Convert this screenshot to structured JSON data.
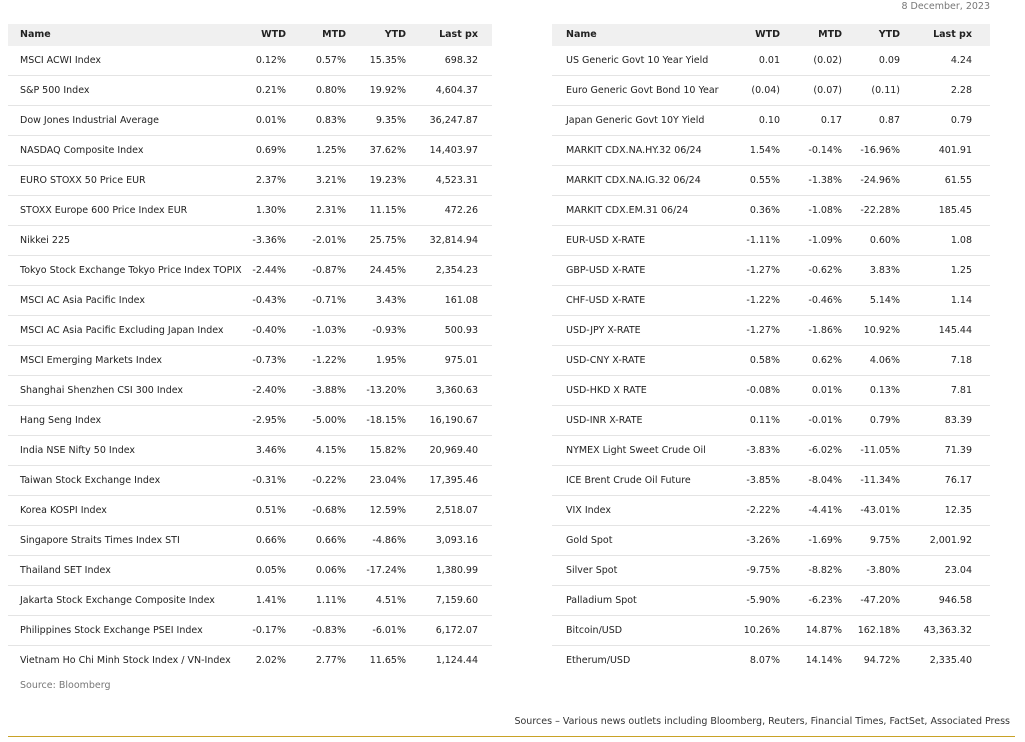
{
  "date": "8 December, 2023",
  "tables": [
    {
      "headers": [
        "Name",
        "WTD",
        "MTD",
        "YTD",
        "Last px"
      ],
      "rows": [
        [
          "MSCI ACWI Index",
          "0.12%",
          "0.57%",
          "15.35%",
          "698.32"
        ],
        [
          "S&P 500 Index",
          "0.21%",
          "0.80%",
          "19.92%",
          "4,604.37"
        ],
        [
          "Dow Jones Industrial Average",
          "0.01%",
          "0.83%",
          "9.35%",
          "36,247.87"
        ],
        [
          "NASDAQ Composite Index",
          "0.69%",
          "1.25%",
          "37.62%",
          "14,403.97"
        ],
        [
          "EURO STOXX 50 Price EUR",
          "2.37%",
          "3.21%",
          "19.23%",
          "4,523.31"
        ],
        [
          "STOXX Europe 600 Price Index EUR",
          "1.30%",
          "2.31%",
          "11.15%",
          "472.26"
        ],
        [
          "Nikkei 225",
          "-3.36%",
          "-2.01%",
          "25.75%",
          "32,814.94"
        ],
        [
          "Tokyo Stock Exchange Tokyo Price Index TOPIX",
          "-2.44%",
          "-0.87%",
          "24.45%",
          "2,354.23"
        ],
        [
          "MSCI AC Asia Pacific Index",
          "-0.43%",
          "-0.71%",
          "3.43%",
          "161.08"
        ],
        [
          "MSCI AC Asia Pacific Excluding Japan Index",
          "-0.40%",
          "-1.03%",
          "-0.93%",
          "500.93"
        ],
        [
          "MSCI Emerging Markets Index",
          "-0.73%",
          "-1.22%",
          "1.95%",
          "975.01"
        ],
        [
          "Shanghai Shenzhen CSI 300 Index",
          "-2.40%",
          "-3.88%",
          "-13.20%",
          "3,360.63"
        ],
        [
          "Hang Seng Index",
          "-2.95%",
          "-5.00%",
          "-18.15%",
          "16,190.67"
        ],
        [
          "India NSE Nifty 50 Index",
          "3.46%",
          "4.15%",
          "15.82%",
          "20,969.40"
        ],
        [
          "Taiwan Stock Exchange Index",
          "-0.31%",
          "-0.22%",
          "23.04%",
          "17,395.46"
        ],
        [
          "Korea KOSPI Index",
          "0.51%",
          "-0.68%",
          "12.59%",
          "2,518.07"
        ],
        [
          "Singapore Straits Times Index STI",
          "0.66%",
          "0.66%",
          "-4.86%",
          "3,093.16"
        ],
        [
          "Thailand SET Index",
          "0.05%",
          "0.06%",
          "-17.24%",
          "1,380.99"
        ],
        [
          "Jakarta Stock Exchange Composite Index",
          "1.41%",
          "1.11%",
          "4.51%",
          "7,159.60"
        ],
        [
          "Philippines Stock Exchange PSEI Index",
          "-0.17%",
          "-0.83%",
          "-6.01%",
          "6,172.07"
        ],
        [
          "Vietnam Ho Chi Minh Stock Index / VN-Index",
          "2.02%",
          "2.77%",
          "11.65%",
          "1,124.44"
        ]
      ],
      "source": "Source: Bloomberg"
    },
    {
      "headers": [
        "Name",
        "WTD",
        "MTD",
        "YTD",
        "Last px"
      ],
      "rows": [
        [
          "US Generic Govt 10 Year Yield",
          "0.01",
          "(0.02)",
          "0.09",
          "4.24"
        ],
        [
          "Euro Generic Govt Bond 10 Year",
          "(0.04)",
          "(0.07)",
          "(0.11)",
          "2.28"
        ],
        [
          "Japan Generic Govt 10Y Yield",
          "0.10",
          "0.17",
          "0.87",
          "0.79"
        ],
        [
          "MARKIT CDX.NA.HY.32 06/24",
          "1.54%",
          "-0.14%",
          "-16.96%",
          "401.91"
        ],
        [
          "MARKIT CDX.NA.IG.32 06/24",
          "0.55%",
          "-1.38%",
          "-24.96%",
          "61.55"
        ],
        [
          "MARKIT CDX.EM.31 06/24",
          "0.36%",
          "-1.08%",
          "-22.28%",
          "185.45"
        ],
        [
          "EUR-USD X-RATE",
          "-1.11%",
          "-1.09%",
          "0.60%",
          "1.08"
        ],
        [
          "GBP-USD X-RATE",
          "-1.27%",
          "-0.62%",
          "3.83%",
          "1.25"
        ],
        [
          "CHF-USD X-RATE",
          "-1.22%",
          "-0.46%",
          "5.14%",
          "1.14"
        ],
        [
          "USD-JPY X-RATE",
          "-1.27%",
          "-1.86%",
          "10.92%",
          "145.44"
        ],
        [
          "USD-CNY X-RATE",
          "0.58%",
          "0.62%",
          "4.06%",
          "7.18"
        ],
        [
          "USD-HKD X RATE",
          "-0.08%",
          "0.01%",
          "0.13%",
          "7.81"
        ],
        [
          "USD-INR X-RATE",
          "0.11%",
          "-0.01%",
          "0.79%",
          "83.39"
        ],
        [
          "NYMEX Light Sweet Crude Oil",
          "-3.83%",
          "-6.02%",
          "-11.05%",
          "71.39"
        ],
        [
          "ICE Brent Crude Oil Future",
          "-3.85%",
          "-8.04%",
          "-11.34%",
          "76.17"
        ],
        [
          "VIX Index",
          "-2.22%",
          "-4.41%",
          "-43.01%",
          "12.35"
        ],
        [
          "Gold Spot",
          "-3.26%",
          "-1.69%",
          "9.75%",
          "2,001.92"
        ],
        [
          "Silver Spot",
          "-9.75%",
          "-8.82%",
          "-3.80%",
          "23.04"
        ],
        [
          "Palladium Spot",
          "-5.90%",
          "-6.23%",
          "-47.20%",
          "946.58"
        ],
        [
          "Bitcoin/USD",
          "10.26%",
          "14.87%",
          "162.18%",
          "43,363.32"
        ],
        [
          "Etherum/USD",
          "8.07%",
          "14.14%",
          "94.72%",
          "2,335.40"
        ]
      ]
    }
  ],
  "footer": "Sources – Various news outlets including Bloomberg, Reuters, Financial Times, FactSet, Associated Press"
}
